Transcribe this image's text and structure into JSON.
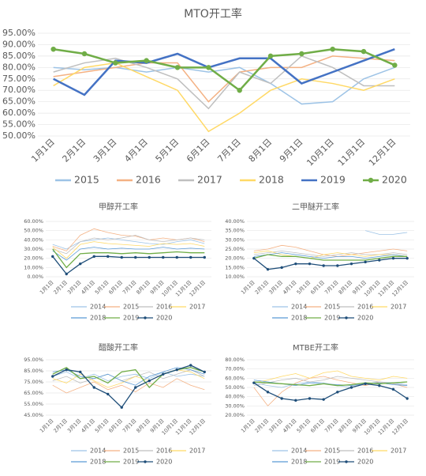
{
  "chart_data": [
    {
      "type": "line",
      "title": "MTO开工率",
      "categories": [
        "1月1日",
        "2月1日",
        "3月1日",
        "4月1日",
        "5月1日",
        "6月1日",
        "7月1日",
        "8月1日",
        "9月1日",
        "10月1日",
        "11月1日",
        "12月1日"
      ],
      "ylim": [
        50,
        95
      ],
      "yticks": [
        {
          "value": 50,
          "label": "50.00%"
        },
        {
          "value": 55,
          "label": "55.00%"
        },
        {
          "value": 60,
          "label": "60.00%"
        },
        {
          "value": 65,
          "label": "65.00%"
        },
        {
          "value": 70,
          "label": "70.00%"
        },
        {
          "value": 75,
          "label": "75.00%"
        },
        {
          "value": 80,
          "label": "80.00%"
        },
        {
          "value": 85,
          "label": "85.00%"
        },
        {
          "value": 90,
          "label": "90.00%"
        },
        {
          "value": 95,
          "label": "95.00%"
        }
      ],
      "series": [
        {
          "name": "2015",
          "color": "#9dc3e6",
          "values": [
            80,
            79,
            80,
            78,
            80,
            78,
            80,
            73,
            64,
            65,
            75,
            80
          ]
        },
        {
          "name": "2016",
          "color": "#f4b183",
          "values": [
            76,
            78,
            80,
            82,
            82,
            65,
            78,
            80,
            80,
            85,
            84,
            83
          ]
        },
        {
          "name": "2017",
          "color": "#bfbfbf",
          "values": [
            78,
            82,
            84,
            80,
            75,
            62,
            78,
            73,
            85,
            80,
            72,
            72
          ]
        },
        {
          "name": "2018",
          "color": "#ffd966",
          "values": [
            72,
            80,
            82,
            76,
            70,
            52,
            60,
            70,
            75,
            73,
            70,
            75
          ]
        },
        {
          "name": "2019",
          "color": "#4472c4",
          "values": [
            75,
            68,
            83,
            82,
            86,
            80,
            84,
            84,
            73,
            78,
            83,
            88
          ]
        },
        {
          "name": "2020",
          "color": "#70ad47",
          "marker": true,
          "values": [
            88,
            86,
            82,
            83,
            80,
            80,
            70,
            85,
            86,
            88,
            87,
            81
          ]
        }
      ]
    },
    {
      "type": "line",
      "title": "甲醇开工率",
      "categories": [
        "1月1日",
        "2月1日",
        "3月1日",
        "4月1日",
        "5月1日",
        "6月1日",
        "7月1日",
        "8月1日",
        "9月1日",
        "10月1日",
        "11月1日",
        "12月1日"
      ],
      "ylim": [
        0,
        60
      ],
      "yticks": [
        {
          "value": 0,
          "label": "0.00%"
        },
        {
          "value": 10,
          "label": "10.00%"
        },
        {
          "value": 20,
          "label": "20.00%"
        },
        {
          "value": 30,
          "label": "30.00%"
        },
        {
          "value": 40,
          "label": "40.00%"
        },
        {
          "value": 50,
          "label": "50.00%"
        },
        {
          "value": 60,
          "label": "60.00%"
        }
      ],
      "series": [
        {
          "name": "2014",
          "color": "#9dc3e6",
          "values": [
            35,
            30,
            38,
            40,
            42,
            40,
            38,
            36,
            35,
            38,
            40,
            36
          ]
        },
        {
          "name": "2015",
          "color": "#f4b183",
          "values": [
            33,
            28,
            45,
            52,
            48,
            45,
            44,
            40,
            42,
            40,
            42,
            38
          ]
        },
        {
          "name": "2016",
          "color": "#bfbfbf",
          "values": [
            30,
            25,
            38,
            42,
            40,
            42,
            45,
            40,
            38,
            40,
            42,
            40
          ]
        },
        {
          "name": "2017",
          "color": "#ffd966",
          "values": [
            32,
            20,
            35,
            38,
            36,
            35,
            34,
            33,
            36,
            35,
            36,
            33
          ]
        },
        {
          "name": "2018",
          "color": "#5b9bd5",
          "values": [
            28,
            18,
            30,
            32,
            30,
            31,
            30,
            30,
            32,
            30,
            31,
            30
          ]
        },
        {
          "name": "2019",
          "color": "#70ad47",
          "values": [
            30,
            10,
            25,
            26,
            26,
            25,
            26,
            25,
            26,
            27,
            26,
            26
          ]
        },
        {
          "name": "2020",
          "color": "#1f4e79",
          "marker": true,
          "values": [
            22,
            3,
            14,
            22,
            22,
            21,
            21,
            21,
            21,
            21,
            21,
            21
          ]
        }
      ]
    },
    {
      "type": "line",
      "title": "二甲醚开工率",
      "categories": [
        "1月1日",
        "2月1日",
        "3月1日",
        "4月1日",
        "5月1日",
        "6月1日",
        "7月1日",
        "8月1日",
        "9月1日",
        "10月1日",
        "11月1日",
        "12月1日"
      ],
      "ylim": [
        10,
        40
      ],
      "yticks": [
        {
          "value": 10,
          "label": "10.00%"
        },
        {
          "value": 15,
          "label": "15.00%"
        },
        {
          "value": 20,
          "label": "20.00%"
        },
        {
          "value": 25,
          "label": "25.00%"
        },
        {
          "value": 30,
          "label": "30.00%"
        },
        {
          "value": 35,
          "label": "35.00%"
        },
        {
          "value": 40,
          "label": "40.00%"
        }
      ],
      "series": [
        {
          "name": "2014",
          "color": "#9dc3e6",
          "values": [
            null,
            null,
            null,
            null,
            null,
            null,
            null,
            null,
            35,
            33,
            33,
            34
          ]
        },
        {
          "name": "2015",
          "color": "#f4b183",
          "values": [
            24,
            25,
            27,
            26,
            24,
            22,
            21,
            22,
            23,
            24,
            25,
            24
          ]
        },
        {
          "name": "2016",
          "color": "#bfbfbf",
          "values": [
            22,
            23,
            24,
            23,
            22,
            21,
            22,
            23,
            22,
            22,
            23,
            22
          ]
        },
        {
          "name": "2017",
          "color": "#ffd966",
          "values": [
            23,
            24,
            22,
            21,
            20,
            22,
            23,
            22,
            21,
            22,
            22,
            21
          ]
        },
        {
          "name": "2018",
          "color": "#5b9bd5",
          "values": [
            21,
            22,
            23,
            22,
            21,
            20,
            21,
            21,
            20,
            21,
            22,
            21
          ]
        },
        {
          "name": "2019",
          "color": "#70ad47",
          "values": [
            20,
            22,
            21,
            21,
            20,
            19,
            19,
            19,
            19,
            20,
            21,
            21
          ]
        },
        {
          "name": "2020",
          "color": "#1f4e79",
          "marker": true,
          "values": [
            20,
            14,
            15,
            17,
            17,
            16,
            16,
            17,
            18,
            19,
            20,
            20
          ]
        }
      ]
    },
    {
      "type": "line",
      "title": "醋酸开工率",
      "categories": [
        "1月1日",
        "2月1日",
        "3月1日",
        "4月1日",
        "5月1日",
        "6月1日",
        "7月1日",
        "8月1日",
        "9月1日",
        "10月1日",
        "11月1日",
        "12月1日"
      ],
      "ylim": [
        45,
        95
      ],
      "yticks": [
        {
          "value": 45,
          "label": "45.00%"
        },
        {
          "value": 55,
          "label": "55.00%"
        },
        {
          "value": 65,
          "label": "65.00%"
        },
        {
          "value": 75,
          "label": "75.00%"
        },
        {
          "value": 85,
          "label": "85.00%"
        },
        {
          "value": 95,
          "label": "95.00%"
        }
      ],
      "series": [
        {
          "name": "2014",
          "color": "#9dc3e6",
          "values": [
            80,
            84,
            78,
            82,
            76,
            80,
            82,
            78,
            84,
            80,
            82,
            80
          ]
        },
        {
          "name": "2015",
          "color": "#f4b183",
          "values": [
            72,
            65,
            70,
            75,
            68,
            72,
            66,
            74,
            70,
            78,
            72,
            68
          ]
        },
        {
          "name": "2016",
          "color": "#bfbfbf",
          "values": [
            76,
            80,
            74,
            78,
            82,
            76,
            80,
            84,
            78,
            82,
            86,
            80
          ]
        },
        {
          "name": "2017",
          "color": "#ffd966",
          "values": [
            78,
            74,
            82,
            76,
            70,
            74,
            80,
            76,
            82,
            86,
            84,
            78
          ]
        },
        {
          "name": "2018",
          "color": "#5b9bd5",
          "values": [
            84,
            86,
            80,
            78,
            82,
            76,
            72,
            80,
            84,
            88,
            86,
            82
          ]
        },
        {
          "name": "2019",
          "color": "#70ad47",
          "values": [
            82,
            88,
            78,
            80,
            74,
            84,
            86,
            70,
            82,
            86,
            88,
            84
          ]
        },
        {
          "name": "2020",
          "color": "#1f4e79",
          "marker": true,
          "values": [
            80,
            86,
            84,
            70,
            64,
            52,
            70,
            76,
            82,
            86,
            90,
            84
          ]
        }
      ]
    },
    {
      "type": "line",
      "title": "MTBE开工率",
      "categories": [
        "1月1日",
        "2月1日",
        "3月1日",
        "4月1日",
        "5月1日",
        "6月1日",
        "7月1日",
        "8月1日",
        "9月1日",
        "10月1日",
        "11月1日",
        "12月1日"
      ],
      "ylim": [
        20,
        80
      ],
      "yticks": [
        {
          "value": 20,
          "label": "20.00%"
        },
        {
          "value": 30,
          "label": "30.00%"
        },
        {
          "value": 40,
          "label": "40.00%"
        },
        {
          "value": 50,
          "label": "50.00%"
        },
        {
          "value": 60,
          "label": "60.00%"
        },
        {
          "value": 70,
          "label": "70.00%"
        },
        {
          "value": 80,
          "label": "80.00%"
        }
      ],
      "series": [
        {
          "name": "2014",
          "color": "#9dc3e6",
          "values": [
            55,
            52,
            50,
            54,
            56,
            55,
            52,
            50,
            54,
            56,
            55,
            53
          ]
        },
        {
          "name": "2015",
          "color": "#f4b183",
          "values": [
            50,
            30,
            45,
            55,
            60,
            62,
            58,
            55,
            52,
            56,
            54,
            50
          ]
        },
        {
          "name": "2016",
          "color": "#bfbfbf",
          "values": [
            52,
            55,
            58,
            60,
            56,
            58,
            62,
            60,
            58,
            56,
            54,
            52
          ]
        },
        {
          "name": "2017",
          "color": "#ffd966",
          "values": [
            55,
            58,
            62,
            65,
            60,
            66,
            68,
            62,
            60,
            58,
            62,
            60
          ]
        },
        {
          "name": "2018",
          "color": "#5b9bd5",
          "values": [
            58,
            56,
            54,
            52,
            55,
            54,
            53,
            52,
            54,
            55,
            53,
            52
          ]
        },
        {
          "name": "2019",
          "color": "#70ad47",
          "values": [
            56,
            55,
            54,
            53,
            52,
            54,
            52,
            53,
            55,
            54,
            55,
            56
          ]
        },
        {
          "name": "2020",
          "color": "#1f4e79",
          "marker": true,
          "values": [
            55,
            45,
            38,
            36,
            38,
            37,
            45,
            50,
            54,
            52,
            48,
            38
          ]
        }
      ]
    }
  ]
}
